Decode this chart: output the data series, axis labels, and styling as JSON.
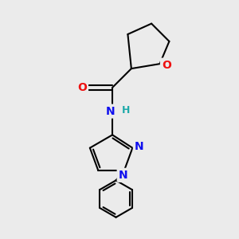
{
  "bg_color": "#ebebeb",
  "atom_colors": {
    "C": "#000000",
    "N": "#1010ee",
    "O": "#ee1010",
    "H": "#20aaaa"
  },
  "bond_color": "#000000",
  "bond_width": 1.5,
  "font_size_atoms": 10,
  "figsize": [
    3.0,
    3.0
  ],
  "dpi": 100
}
